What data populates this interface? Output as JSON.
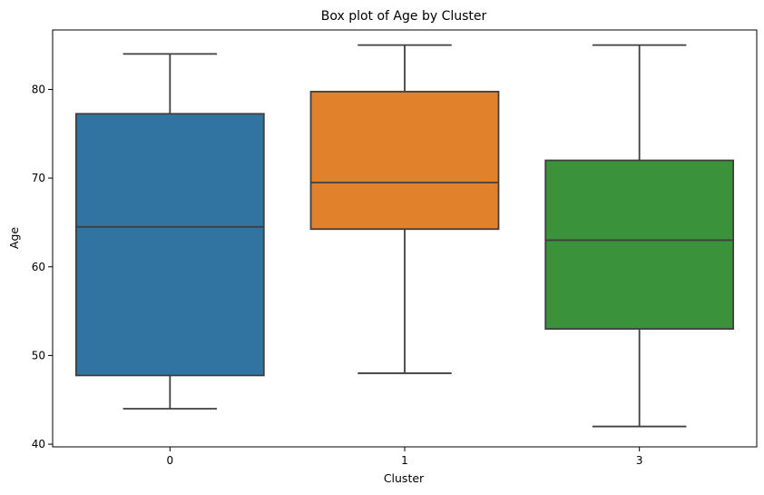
{
  "chart_data": {
    "type": "box",
    "title": "Box plot of Age by Cluster",
    "xlabel": "Cluster",
    "ylabel": "Age",
    "ylim": [
      39.7,
      86.7
    ],
    "yticks": [
      "40",
      "50",
      "60",
      "70",
      "80"
    ],
    "categories": [
      "0",
      "1",
      "3"
    ],
    "boxes": [
      {
        "category": "0",
        "whisker_low": 44,
        "q1": 47.75,
        "median": 64.5,
        "q3": 77.25,
        "whisker_high": 84,
        "color": "#3274a1"
      },
      {
        "category": "1",
        "whisker_low": 48,
        "q1": 64.25,
        "median": 69.5,
        "q3": 79.75,
        "whisker_high": 85,
        "color": "#e1812c"
      },
      {
        "category": "3",
        "whisker_low": 42,
        "q1": 53,
        "median": 63,
        "q3": 72,
        "whisker_high": 85,
        "color": "#3a923a"
      }
    ],
    "grid": false,
    "legend": "none"
  }
}
